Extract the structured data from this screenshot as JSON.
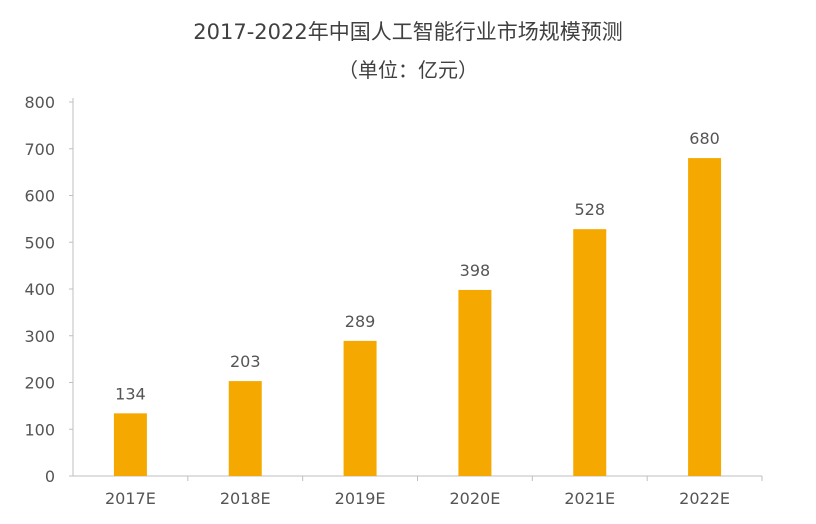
{
  "chart_data": {
    "type": "bar",
    "title": "2017-2022年中国人工智能行业市场规模预测",
    "subtitle": "（单位：亿元）",
    "categories": [
      "2017E",
      "2018E",
      "2019E",
      "2020E",
      "2021E",
      "2022E"
    ],
    "values": [
      134,
      203,
      289,
      398,
      528,
      680
    ],
    "data_labels": [
      "134",
      "203",
      "289",
      "398",
      "528",
      "680"
    ],
    "y_ticks": [
      "0",
      "100",
      "200",
      "300",
      "400",
      "500",
      "600",
      "700",
      "800"
    ],
    "ylim": [
      0,
      800
    ],
    "bar_color": "#F5A800",
    "grid": false,
    "legend": "none"
  }
}
